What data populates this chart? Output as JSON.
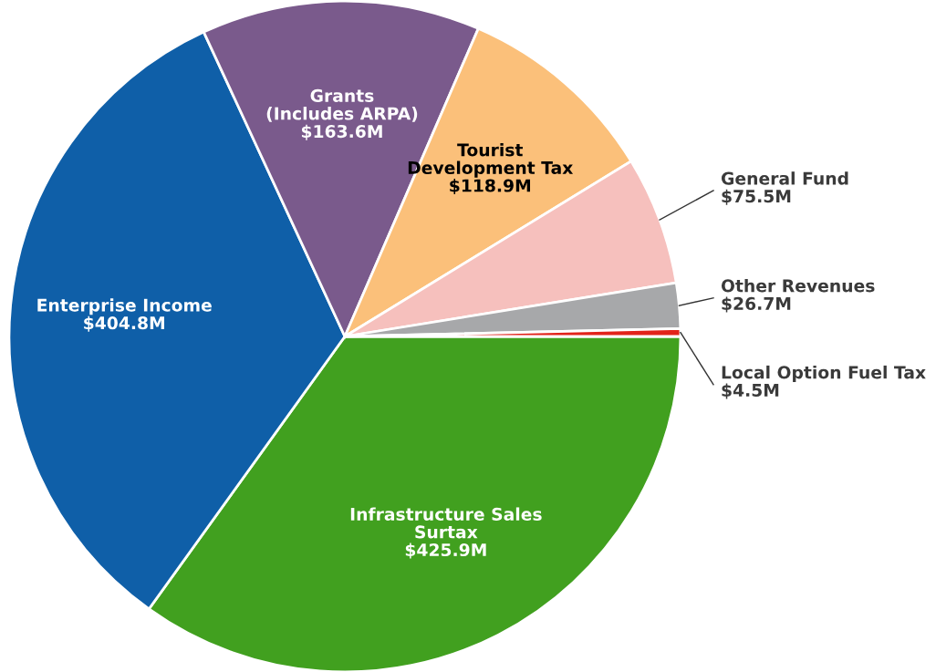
{
  "chart_data": {
    "type": "pie",
    "categories": [
      "Infrastructure Sales\nSurtax",
      "Enterprise Income",
      "Grants\n(Includes ARPA)",
      "Tourist\nDevelopment Tax",
      "General Fund",
      "Other Revenues",
      "Local Option Fuel Tax"
    ],
    "values": [
      425.9,
      404.8,
      163.6,
      118.9,
      75.5,
      26.7,
      4.5
    ],
    "value_labels": [
      "$425.9M",
      "$404.8M",
      "$163.6M",
      "$118.9M",
      "$75.5M",
      "$26.7M",
      "$4.5M"
    ],
    "colors": [
      "#41a01f",
      "#0f5fa8",
      "#7a5a8c",
      "#fbc07a",
      "#f6c0bd",
      "#a7a8aa",
      "#e2231a"
    ]
  }
}
